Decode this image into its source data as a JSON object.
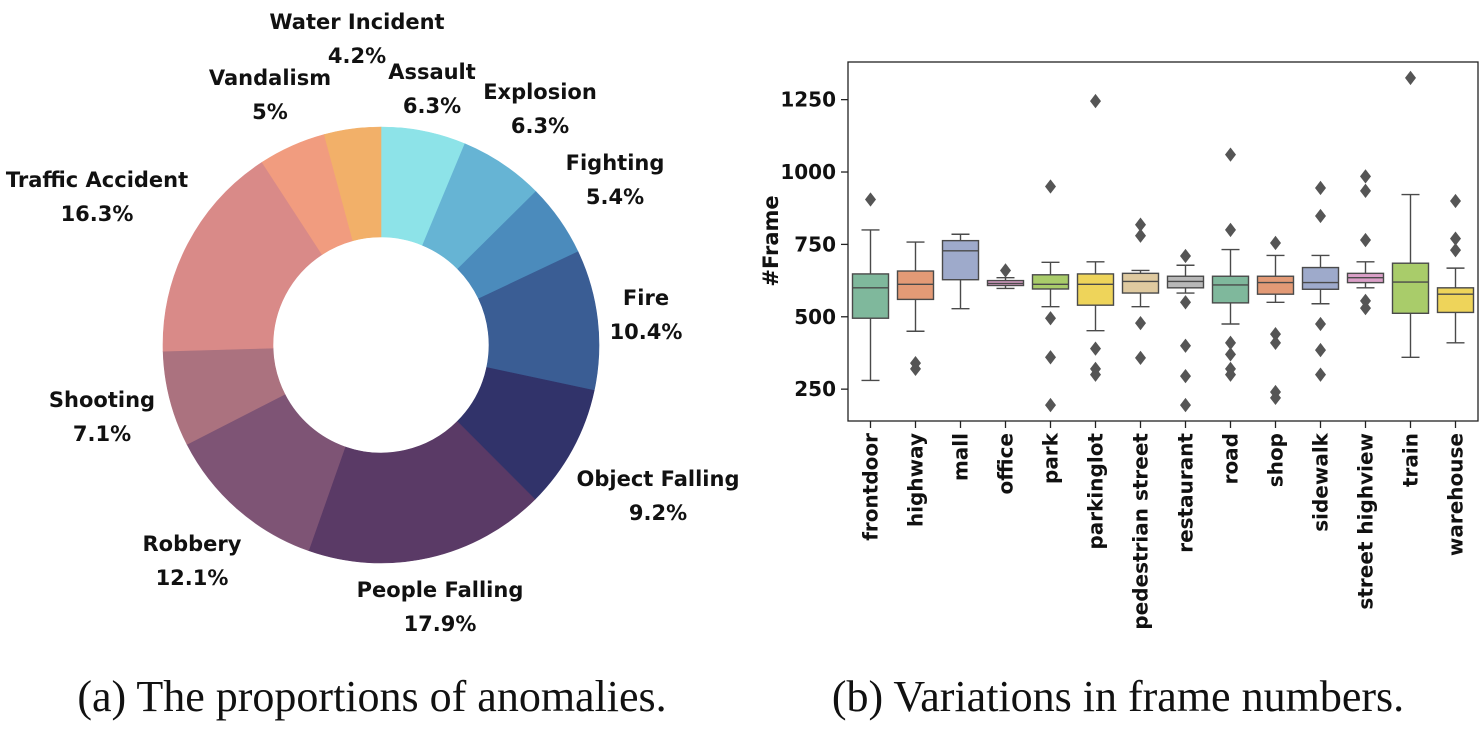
{
  "captions": {
    "a": "(a) The proportions of anomalies.",
    "b": "(b) Variations in frame numbers."
  },
  "chart_data": [
    {
      "type": "pie",
      "variant": "donut",
      "start_angle_deg": 90,
      "direction": "clockwise",
      "slices": [
        {
          "label": "Assault",
          "pct_text": "6.3%",
          "value": 6.3,
          "color": "#8de3e8"
        },
        {
          "label": "Explosion",
          "pct_text": "6.3%",
          "value": 6.3,
          "color": "#66b4d4"
        },
        {
          "label": "Fighting",
          "pct_text": "5.4%",
          "value": 5.4,
          "color": "#4b8bbc"
        },
        {
          "label": "Fire",
          "pct_text": "10.4%",
          "value": 10.4,
          "color": "#3a5d94"
        },
        {
          "label": "Object Falling",
          "pct_text": "9.2%",
          "value": 9.2,
          "color": "#31336a"
        },
        {
          "label": "People Falling",
          "pct_text": "17.9%",
          "value": 17.9,
          "color": "#5a3a66"
        },
        {
          "label": "Robbery",
          "pct_text": "12.1%",
          "value": 12.1,
          "color": "#7e5475"
        },
        {
          "label": "Shooting",
          "pct_text": "7.1%",
          "value": 7.1,
          "color": "#ab727f"
        },
        {
          "label": "Traffic Accident",
          "pct_text": "16.3%",
          "value": 16.3,
          "color": "#d98a88"
        },
        {
          "label": "Vandalism",
          "pct_text": "5%",
          "value": 5.0,
          "color": "#f19c7f"
        },
        {
          "label": "Water Incident",
          "pct_text": "4.2%",
          "value": 4.2,
          "color": "#f2b069"
        }
      ]
    },
    {
      "type": "box",
      "ylabel": "#Frame",
      "ylim": [
        140,
        1380
      ],
      "yticks": [
        250,
        500,
        750,
        1000,
        1250
      ],
      "categories": [
        {
          "name": "frontdoor",
          "color": "#7fb89c",
          "whisker_low": 280,
          "q1": 495,
          "median": 600,
          "q3": 648,
          "whisker_high": 800,
          "outliers": [
            905
          ]
        },
        {
          "name": "highway",
          "color": "#e39a76",
          "whisker_low": 450,
          "q1": 560,
          "median": 612,
          "q3": 658,
          "whisker_high": 758,
          "outliers": [
            320,
            340
          ]
        },
        {
          "name": "mall",
          "color": "#9eaacb",
          "whisker_low": 528,
          "q1": 628,
          "median": 728,
          "q3": 763,
          "whisker_high": 785,
          "outliers": []
        },
        {
          "name": "office",
          "color": "#da9fc7",
          "whisker_low": 598,
          "q1": 608,
          "median": 615,
          "q3": 625,
          "whisker_high": 635,
          "outliers": [
            660
          ]
        },
        {
          "name": "park",
          "color": "#a9cc6a",
          "whisker_low": 535,
          "q1": 596,
          "median": 612,
          "q3": 645,
          "whisker_high": 688,
          "outliers": [
            950,
            495,
            360,
            195
          ]
        },
        {
          "name": "parkinglot",
          "color": "#eed45a",
          "whisker_low": 452,
          "q1": 540,
          "median": 612,
          "q3": 648,
          "whisker_high": 690,
          "outliers": [
            1245,
            390,
            320,
            300
          ]
        },
        {
          "name": "pedestrian street",
          "color": "#dfcaa0",
          "whisker_low": 535,
          "q1": 582,
          "median": 622,
          "q3": 650,
          "whisker_high": 660,
          "outliers": [
            818,
            780,
            478,
            358
          ]
        },
        {
          "name": "restaurant",
          "color": "#b8b8b8",
          "whisker_low": 582,
          "q1": 600,
          "median": 622,
          "q3": 640,
          "whisker_high": 678,
          "outliers": [
            710,
            550,
            400,
            295,
            195
          ]
        },
        {
          "name": "road",
          "color": "#7fb89c",
          "whisker_low": 475,
          "q1": 548,
          "median": 610,
          "q3": 640,
          "whisker_high": 732,
          "outliers": [
            1060,
            800,
            410,
            370,
            320,
            300
          ]
        },
        {
          "name": "shop",
          "color": "#e39a76",
          "whisker_low": 550,
          "q1": 578,
          "median": 618,
          "q3": 640,
          "whisker_high": 712,
          "outliers": [
            755,
            440,
            410,
            240,
            220
          ]
        },
        {
          "name": "sidewalk",
          "color": "#9eaacb",
          "whisker_low": 545,
          "q1": 595,
          "median": 618,
          "q3": 670,
          "whisker_high": 712,
          "outliers": [
            945,
            848,
            475,
            385,
            300
          ]
        },
        {
          "name": "street highview",
          "color": "#da9fc7",
          "whisker_low": 600,
          "q1": 618,
          "median": 635,
          "q3": 650,
          "whisker_high": 690,
          "outliers": [
            985,
            935,
            765,
            555,
            530
          ]
        },
        {
          "name": "train",
          "color": "#a9cc6a",
          "whisker_low": 360,
          "q1": 512,
          "median": 620,
          "q3": 685,
          "whisker_high": 922,
          "outliers": [
            1325
          ]
        },
        {
          "name": "warehouse",
          "color": "#eed45a",
          "whisker_low": 410,
          "q1": 515,
          "median": 578,
          "q3": 600,
          "whisker_high": 668,
          "outliers": [
            900,
            770,
            730
          ]
        }
      ]
    }
  ]
}
